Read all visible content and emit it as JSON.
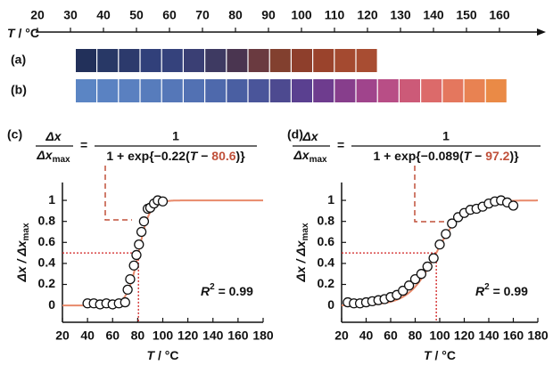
{
  "strip": {
    "xlabel": [
      "T",
      " / °C"
    ],
    "xlim": [
      20,
      160
    ],
    "xticks": [
      20,
      30,
      40,
      50,
      60,
      70,
      80,
      90,
      100,
      110,
      120,
      130,
      140,
      150,
      160
    ],
    "rows": [
      {
        "label": "(a)",
        "colors": [
          "#22305a",
          "#283866",
          "#2c3a6c",
          "#31407a",
          "#35427c",
          "#3a3f74",
          "#3e3a62",
          "#4a3550",
          "#6a3a40",
          "#82402f",
          "#8e3f2c",
          "#9a432c",
          "#a44a30",
          "#a84d32"
        ]
      },
      {
        "label": "(b)",
        "colors": [
          "#5b85c4",
          "#5a82c2",
          "#5a80c0",
          "#577cbc",
          "#5577b8",
          "#5271b3",
          "#4e69ac",
          "#4a5fa2",
          "#4a559a",
          "#4d4a90",
          "#5a4090",
          "#6e3c8e",
          "#873e8c",
          "#a0448c",
          "#b84e86",
          "#cc5a78",
          "#dc6a6a",
          "#e4775e",
          "#e88252",
          "#ea8a46"
        ]
      }
    ]
  },
  "chart_data": [
    {
      "type": "scatter",
      "panel": "(c)",
      "equation": {
        "lhs_num": "Δx",
        "lhs_den": "Δx",
        "lhs_den_sub": "max",
        "eq": "=",
        "rhs_num": "1",
        "den_prefix": "1 + exp{",
        "den_open": "(",
        "den_var": "T",
        "den_minus": " − ",
        "den_close": ")}"
      },
      "fit": {
        "k": {
          "value": -0.22,
          "label": "−0.22"
        },
        "t0": 80.6,
        "color": "#e8896a"
      },
      "fit_label": [
        "R",
        "2",
        " = 0.99"
      ],
      "x": [
        40,
        45,
        50,
        55,
        60,
        65,
        70,
        72,
        74,
        77,
        79,
        81,
        83,
        85,
        88,
        90,
        93,
        96,
        100
      ],
      "y": [
        0.02,
        0.02,
        0.01,
        0.02,
        0.01,
        0.02,
        0.03,
        0.15,
        0.25,
        0.38,
        0.48,
        0.58,
        0.7,
        0.8,
        0.92,
        0.93,
        0.97,
        1.0,
        0.99
      ],
      "xlim": [
        20,
        180
      ],
      "ylim": [
        -0.16,
        1.17
      ],
      "xticks": [
        20,
        40,
        60,
        80,
        100,
        120,
        140,
        160,
        180
      ],
      "yticks": [
        0,
        0.2,
        0.4,
        0.6,
        0.8,
        1
      ],
      "xlabel": [
        "T",
        " / °C"
      ],
      "ylabel": [
        "Δx / Δx",
        "max"
      ]
    },
    {
      "type": "scatter",
      "panel": "(d)",
      "equation": {
        "lhs_num": "Δx",
        "lhs_den": "Δx",
        "lhs_den_sub": "max",
        "eq": "=",
        "rhs_num": "1",
        "den_prefix": "1 + exp{",
        "den_open": "(",
        "den_var": "T",
        "den_minus": " − ",
        "den_close": ")}"
      },
      "fit": {
        "k": {
          "value": -0.089,
          "label": "−0.089"
        },
        "t0": 97.2,
        "color": "#e8896a"
      },
      "fit_label": [
        "R",
        "2",
        " = 0.99"
      ],
      "x": [
        25,
        30,
        35,
        40,
        45,
        50,
        55,
        60,
        65,
        70,
        75,
        80,
        85,
        90,
        95,
        100,
        105,
        110,
        115,
        120,
        125,
        130,
        135,
        140,
        145,
        150,
        155,
        160
      ],
      "y": [
        0.03,
        0.02,
        0.02,
        0.03,
        0.04,
        0.05,
        0.06,
        0.08,
        0.1,
        0.14,
        0.19,
        0.25,
        0.3,
        0.37,
        0.45,
        0.58,
        0.68,
        0.78,
        0.84,
        0.88,
        0.91,
        0.92,
        0.94,
        0.97,
        0.99,
        1.0,
        0.98,
        0.95
      ],
      "xlim": [
        20,
        180
      ],
      "ylim": [
        -0.16,
        1.17
      ],
      "xticks": [
        20,
        40,
        60,
        80,
        100,
        120,
        140,
        160,
        180
      ],
      "yticks": [
        0,
        0.2,
        0.4,
        0.6,
        0.8,
        1
      ],
      "xlabel": [
        "T",
        " / °C"
      ],
      "ylabel": [
        "Δx / Δx",
        "max"
      ]
    }
  ]
}
